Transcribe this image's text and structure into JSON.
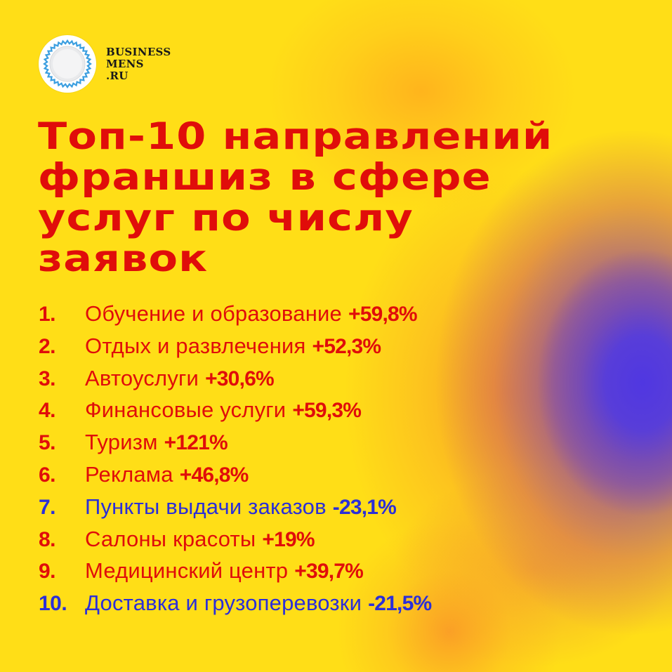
{
  "brand": {
    "logo_icon": "plate-icon",
    "lines": [
      "BUSINESS",
      "MENS",
      ".RU"
    ]
  },
  "title": {
    "lines": [
      "Топ-10 направлений",
      "франшиз в сфере",
      "услуг по числу",
      "заявок"
    ]
  },
  "colors": {
    "background": "#ffde17",
    "positive": "#e00d0a",
    "negative": "#2b2fd8",
    "gradient_blue": "#5037e1",
    "gradient_orange": "#f58c28"
  },
  "items": [
    {
      "rank": "1.",
      "label": "Обучение и образование",
      "value": "+59,8%",
      "trend": "positive"
    },
    {
      "rank": "2.",
      "label": "Отдых и развлечения",
      "value": "+52,3%",
      "trend": "positive"
    },
    {
      "rank": "3.",
      "label": "Автоуслуги",
      "value": "+30,6%",
      "trend": "positive"
    },
    {
      "rank": "4.",
      "label": "Финансовые услуги",
      "value": "+59,3%",
      "trend": "positive"
    },
    {
      "rank": "5.",
      "label": "Туризм",
      "value": "+121%",
      "trend": "positive"
    },
    {
      "rank": "6.",
      "label": "Реклама",
      "value": "+46,8%",
      "trend": "positive"
    },
    {
      "rank": "7.",
      "label": "Пункты выдачи заказов",
      "value": "-23,1%",
      "trend": "negative"
    },
    {
      "rank": "8.",
      "label": "Салоны красоты",
      "value": "+19%",
      "trend": "positive"
    },
    {
      "rank": "9.",
      "label": "Медицинский центр",
      "value": "+39,7%",
      "trend": "positive"
    },
    {
      "rank": "10.",
      "label": "Доставка и грузоперевозки",
      "value": "-21,5%",
      "trend": "negative"
    }
  ]
}
